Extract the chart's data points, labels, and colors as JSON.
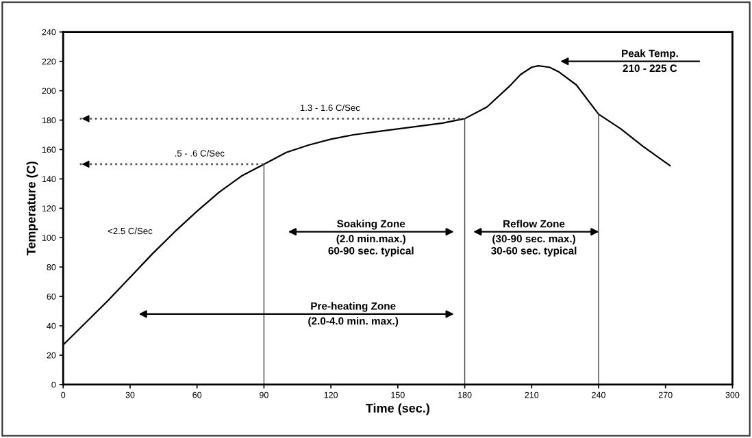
{
  "chart_data": {
    "type": "line",
    "xlabel": "Time (sec.)",
    "ylabel": "Temperature (C)",
    "x": [
      0,
      10,
      20,
      30,
      40,
      50,
      60,
      70,
      80,
      90,
      100,
      110,
      120,
      130,
      140,
      150,
      160,
      170,
      180,
      190,
      200,
      205,
      210,
      213,
      218,
      222,
      230,
      240,
      250,
      260,
      272
    ],
    "series": [
      {
        "color": "#000000",
        "values": [
          27,
          42,
          57,
          73,
          89,
          104,
          118,
          131,
          142,
          150,
          158,
          163,
          167,
          170,
          172,
          174,
          176,
          178,
          181,
          189,
          203,
          211,
          216,
          217,
          216,
          213,
          204,
          184,
          174,
          162,
          149
        ]
      }
    ],
    "xlim": [
      0,
      300
    ],
    "xticks": [
      0,
      30,
      60,
      90,
      120,
      150,
      180,
      210,
      240,
      270,
      300
    ],
    "ylim": [
      0,
      240
    ],
    "yticks": [
      0,
      20,
      40,
      60,
      80,
      100,
      120,
      140,
      160,
      180,
      200,
      220,
      240
    ],
    "grid": false,
    "legend": false,
    "marker": "none",
    "line_style": "solid",
    "ref_lines": [
      {
        "axis": "y",
        "value": 150,
        "label": ".5 - .6 C/Sec",
        "color": "#555555",
        "line_style": "dotted"
      },
      {
        "axis": "y",
        "value": 181,
        "label": "1.3 - 1.6 C/Sec",
        "color": "#555555",
        "line_style": "dotted"
      },
      {
        "axis": "x",
        "value": 90,
        "color": "#444444",
        "line_style": "solid"
      },
      {
        "axis": "x",
        "value": 180,
        "color": "#444444",
        "line_style": "solid"
      },
      {
        "axis": "x",
        "value": 240,
        "color": "#444444",
        "line_style": "solid"
      }
    ],
    "annotations": [
      "<2.5 C/Sec",
      "Soaking Zone\n(2.0 min.max.)\n60-90 sec. typical",
      "Reflow Zone\n(30-90 sec. max.)\n30-60 sec. typical",
      "Pre-heating Zone\n(2.0-4.0 min. max.)",
      "Peak Temp.\n210 - 225 C"
    ]
  }
}
